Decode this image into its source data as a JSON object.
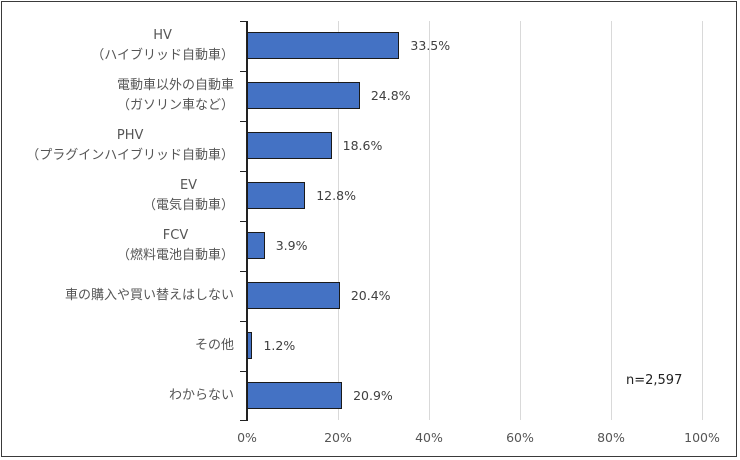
{
  "chart_data": {
    "type": "bar",
    "orientation": "horizontal",
    "title": "",
    "xlabel": "",
    "ylabel": "",
    "xlim": [
      0,
      100
    ],
    "x_ticks": [
      "0%",
      "20%",
      "40%",
      "60%",
      "80%",
      "100%"
    ],
    "grid": true,
    "categories": [
      [
        "HV",
        "（ハイブリッド自動車）"
      ],
      [
        "電動車以外の自動車",
        "（ガソリン車など）"
      ],
      [
        "PHV",
        "（プラグインハイブリッド自動車）"
      ],
      [
        "EV",
        "（電気自動車）"
      ],
      [
        "FCV",
        "（燃料電池自動車）"
      ],
      [
        "車の購入や買い替えはしない"
      ],
      [
        "その他"
      ],
      [
        "わからない"
      ]
    ],
    "values": [
      33.5,
      24.8,
      18.6,
      12.8,
      3.9,
      20.4,
      1.2,
      20.9
    ],
    "value_labels": [
      "33.5%",
      "24.8%",
      "18.6%",
      "12.8%",
      "3.9%",
      "20.4%",
      "1.2%",
      "20.9%"
    ],
    "bar_color": "#4472C4",
    "annotation": "n=2,597"
  }
}
